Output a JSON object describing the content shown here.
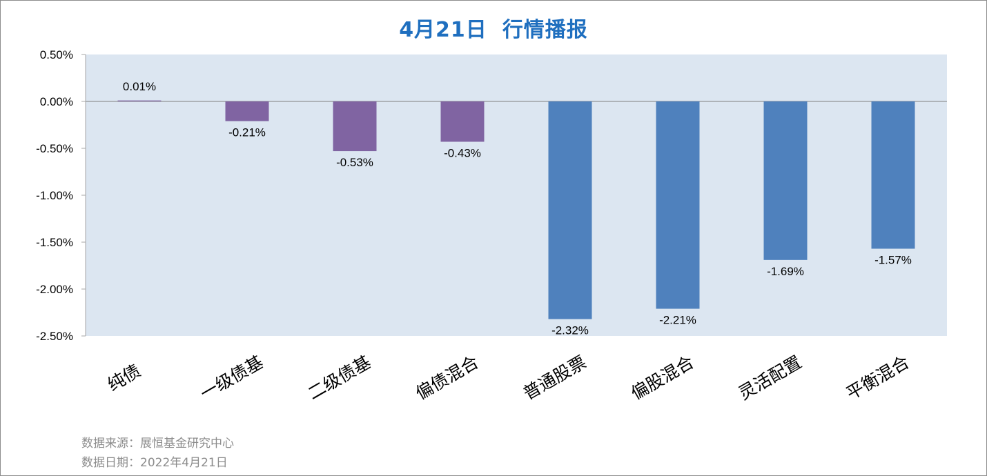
{
  "title_date": "4月21日",
  "title_text": "行情播报",
  "source_line": "数据来源：展恒基金研究中心",
  "date_line": "数据日期：2022年4月21日",
  "colors": {
    "plot_bg": "#dce6f1",
    "bond_bar": "#8064a2",
    "equity_bar": "#4f81bd",
    "title": "#1f6fbf",
    "footnote": "#8c8c8c"
  },
  "chart_data": {
    "type": "bar",
    "title": "4月21日 行情播报",
    "xlabel": "",
    "ylabel": "",
    "ylim": [
      -2.5,
      0.5
    ],
    "yticks": [
      0.5,
      0.0,
      -0.5,
      -1.0,
      -1.5,
      -2.0,
      -2.5
    ],
    "ytick_labels": [
      "0.50%",
      "0.00%",
      "-0.50%",
      "-1.00%",
      "-1.50%",
      "-2.00%",
      "-2.50%"
    ],
    "grid": false,
    "legend": "none",
    "categories": [
      "纯债",
      "一级债基",
      "二级债基",
      "偏债混合",
      "普通股票",
      "偏股混合",
      "灵活配置",
      "平衡混合"
    ],
    "values": [
      0.01,
      -0.21,
      -0.53,
      -0.43,
      -2.32,
      -2.21,
      -1.69,
      -1.57
    ],
    "data_labels": [
      "0.01%",
      "-0.21%",
      "-0.53%",
      "-0.43%",
      "-2.32%",
      "-2.21%",
      "-1.69%",
      "-1.57%"
    ],
    "bar_colors": [
      "#8064a2",
      "#8064a2",
      "#8064a2",
      "#8064a2",
      "#4f81bd",
      "#4f81bd",
      "#4f81bd",
      "#4f81bd"
    ]
  }
}
